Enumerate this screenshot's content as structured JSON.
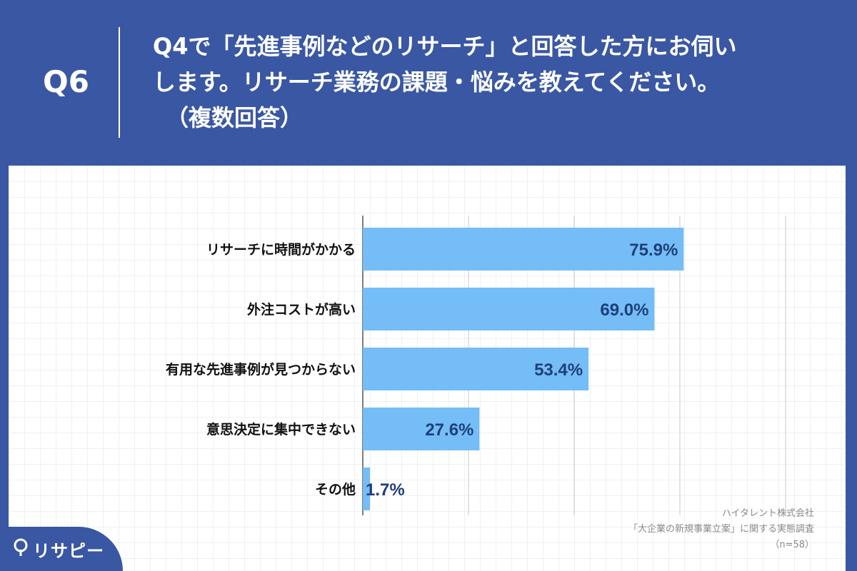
{
  "header": {
    "q_number": "Q6",
    "question_lines": [
      "Q4で「先進事例などのリサーチ」と回答した方にお伺い",
      "します。リサーチ業務の課題・悩みを教えてください。",
      "（複数回答）"
    ]
  },
  "chart_data": {
    "type": "bar",
    "orientation": "horizontal",
    "categories": [
      "リサーチに時間がかかる",
      "外注コストが高い",
      "有用な先進事例が見つからない",
      "意思決定に集中できない",
      "その他"
    ],
    "values": [
      75.9,
      69.0,
      53.4,
      27.6,
      1.7
    ],
    "value_labels": [
      "75.9%",
      "69.0%",
      "53.4%",
      "27.6%",
      "1.7%"
    ],
    "xlim": [
      0,
      100
    ],
    "gridlines": true,
    "bar_color": "#74bdf6",
    "label_color": "#1f3f78"
  },
  "source": {
    "company": "ハイタレント株式会社",
    "survey": "「大企業の新規事業立案」に関する実態調査",
    "sample": "（n=58）"
  },
  "brand": {
    "logo_icon": "pin-icon",
    "name": "リサピー"
  },
  "colors": {
    "background": "#3a57a3",
    "panel": "#ffffff"
  }
}
